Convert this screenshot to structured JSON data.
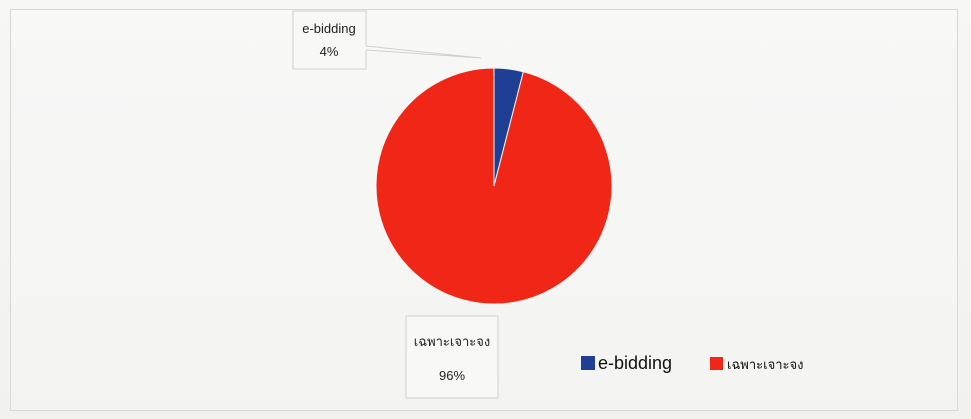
{
  "chart_data": {
    "type": "pie",
    "title": "",
    "series": [
      {
        "values": [
          4,
          96
        ]
      }
    ],
    "labels": [
      "e-bidding",
      "เฉพาะเจาะจง"
    ],
    "value_labels": [
      "4%",
      "96%"
    ],
    "colors": [
      "#1f3f95",
      "#f02616"
    ],
    "legend": {
      "position": "bottom-right",
      "items": [
        "e-bidding",
        "เฉพาะเจาะจง"
      ]
    }
  }
}
